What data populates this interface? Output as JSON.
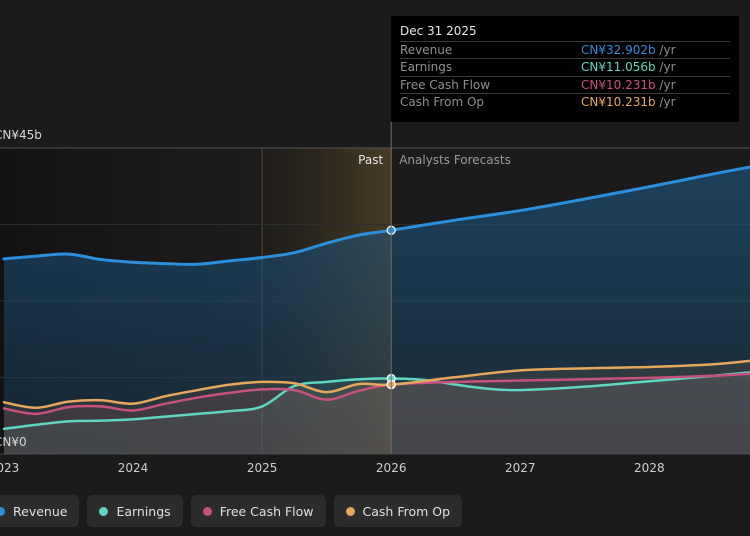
{
  "colors": {
    "background": "#1b1b1b",
    "revenue": "#2b8fdb",
    "earnings": "#5fd6c1",
    "free_cash_flow": "#c8507e",
    "cash_from_op": "#e6a75b"
  },
  "tooltip": {
    "date": "Dec 31 2025",
    "rows": [
      {
        "label": "Revenue",
        "value": "CN¥32.902b",
        "unit": " /yr",
        "color": "#2b8fdb"
      },
      {
        "label": "Earnings",
        "value": "CN¥11.056b",
        "unit": " /yr",
        "color": "#5fd6c1"
      },
      {
        "label": "Free Cash Flow",
        "value": "CN¥10.231b",
        "unit": " /yr",
        "color": "#c8507e"
      },
      {
        "label": "Cash From Op",
        "value": "CN¥10.231b",
        "unit": " /yr",
        "color": "#e6a75b"
      }
    ]
  },
  "legend": [
    {
      "label": "Revenue",
      "color": "#2b8fdb"
    },
    {
      "label": "Earnings",
      "color": "#5fd6c1"
    },
    {
      "label": "Free Cash Flow",
      "color": "#c8507e"
    },
    {
      "label": "Cash From Op",
      "color": "#e6a75b"
    }
  ],
  "chart_data": {
    "type": "area",
    "title": "",
    "xlabel": "",
    "ylabel": "",
    "xlim": [
      2023.0,
      2028.78
    ],
    "ylim": [
      0,
      45
    ],
    "y_tick_labels": [
      "CN¥45b",
      "CN¥0"
    ],
    "x_ticks": [
      2023,
      2024,
      2025,
      2026,
      2027,
      2028
    ],
    "x_tick_labels": [
      "2023",
      "2024",
      "2025",
      "2026",
      "2027",
      "2028"
    ],
    "divider_x": 2026.0,
    "divider_labels": {
      "past": "Past",
      "forecast": "Analysts Forecasts"
    },
    "highlight_range": [
      2025.0,
      2026.0
    ],
    "grid": true,
    "series": [
      {
        "name": "Revenue",
        "color": "#2b8fdb",
        "x": [
          2023.0,
          2023.25,
          2023.5,
          2023.75,
          2024.0,
          2024.25,
          2024.5,
          2024.75,
          2025.0,
          2025.25,
          2025.5,
          2025.75,
          2026.0,
          2026.5,
          2027.0,
          2027.5,
          2028.0,
          2028.5,
          2028.78
        ],
        "y": [
          28.7,
          29.1,
          29.4,
          28.6,
          28.2,
          28.0,
          27.9,
          28.4,
          28.9,
          29.6,
          31.0,
          32.2,
          32.9,
          34.4,
          35.8,
          37.5,
          39.3,
          41.2,
          42.2
        ]
      },
      {
        "name": "Earnings",
        "color": "#5fd6c1",
        "x": [
          2023.0,
          2023.25,
          2023.5,
          2023.75,
          2024.0,
          2024.25,
          2024.5,
          2024.75,
          2025.0,
          2025.25,
          2025.5,
          2025.75,
          2026.0,
          2026.25,
          2026.5,
          2026.75,
          2027.0,
          2027.5,
          2028.0,
          2028.5,
          2028.78
        ],
        "y": [
          3.7,
          4.3,
          4.8,
          4.9,
          5.1,
          5.5,
          5.9,
          6.3,
          7.0,
          10.0,
          10.6,
          11.0,
          11.1,
          10.9,
          10.2,
          9.6,
          9.4,
          9.9,
          10.7,
          11.5,
          12.0
        ]
      },
      {
        "name": "Free Cash Flow",
        "color": "#c8507e",
        "x": [
          2023.0,
          2023.25,
          2023.5,
          2023.75,
          2024.0,
          2024.25,
          2024.5,
          2024.75,
          2025.0,
          2025.25,
          2025.5,
          2025.75,
          2026.0,
          2026.5,
          2027.0,
          2027.5,
          2028.0,
          2028.5,
          2028.78
        ],
        "y": [
          6.7,
          5.9,
          6.9,
          7.0,
          6.4,
          7.4,
          8.3,
          9.0,
          9.5,
          9.4,
          8.0,
          9.3,
          10.2,
          10.6,
          10.8,
          11.0,
          11.2,
          11.5,
          11.8
        ]
      },
      {
        "name": "Cash From Op",
        "color": "#e6a75b",
        "x": [
          2023.0,
          2023.25,
          2023.5,
          2023.75,
          2024.0,
          2024.25,
          2024.5,
          2024.75,
          2025.0,
          2025.25,
          2025.5,
          2025.75,
          2026.0,
          2026.5,
          2027.0,
          2027.5,
          2028.0,
          2028.5,
          2028.78
        ],
        "y": [
          7.6,
          6.8,
          7.7,
          7.9,
          7.4,
          8.5,
          9.4,
          10.2,
          10.6,
          10.4,
          9.1,
          10.3,
          10.2,
          11.3,
          12.3,
          12.6,
          12.8,
          13.2,
          13.7
        ]
      }
    ]
  }
}
